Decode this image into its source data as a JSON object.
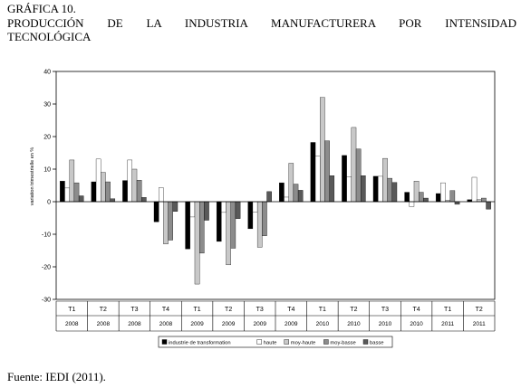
{
  "heading": {
    "line1": "GRÁFICA 10.",
    "line2": "PRODUCCIÓN DE LA INDUSTRIA MANUFACTURERA POR INTENSIDAD",
    "line3": "TECNOLÓGICA"
  },
  "source": "Fuente: IEDI (2011).",
  "colors": {
    "industrie de transformation": "#000000",
    "haute": "#ffffff",
    "moy-haute": "#c8c8c8",
    "moy-basse": "#8c8c8c",
    "basse": "#595959",
    "plot_background": "#ffffff",
    "axis": "#000000"
  },
  "chart_data": {
    "type": "bar",
    "ylabel": "variation trimestrielle en %",
    "ylim": [
      -30,
      40
    ],
    "yticks": [
      -30,
      -20,
      -10,
      0,
      10,
      20,
      30,
      40
    ],
    "grid": false,
    "legend_position": "bottom",
    "categories": [
      {
        "quarter": "T1",
        "year": "2008"
      },
      {
        "quarter": "T2",
        "year": "2008"
      },
      {
        "quarter": "T3",
        "year": "2008"
      },
      {
        "quarter": "T4",
        "year": "2008"
      },
      {
        "quarter": "T1",
        "year": "2009"
      },
      {
        "quarter": "T2",
        "year": "2009"
      },
      {
        "quarter": "T3",
        "year": "2009"
      },
      {
        "quarter": "T4",
        "year": "2009"
      },
      {
        "quarter": "T1",
        "year": "2010"
      },
      {
        "quarter": "T2",
        "year": "2010"
      },
      {
        "quarter": "T3",
        "year": "2010"
      },
      {
        "quarter": "T4",
        "year": "2010"
      },
      {
        "quarter": "T1",
        "year": "2011"
      },
      {
        "quarter": "T2",
        "year": "2011"
      }
    ],
    "series": [
      {
        "name": "industrie de transformation",
        "values": [
          6.3,
          6.1,
          6.5,
          -6.2,
          -14.5,
          -12.2,
          -8.3,
          5.8,
          18.2,
          14.2,
          7.8,
          2.9,
          2.5,
          0.6
        ]
      },
      {
        "name": "haute",
        "values": [
          4.2,
          13.1,
          12.8,
          4.3,
          -4.7,
          -3.3,
          -3.2,
          1.4,
          14.0,
          7.7,
          7.8,
          -1.5,
          5.8,
          7.5
        ]
      },
      {
        "name": "moy-haute",
        "values": [
          12.8,
          9.0,
          10.0,
          -13.0,
          -25.3,
          -19.4,
          -14.0,
          11.8,
          32.0,
          22.8,
          13.3,
          6.3,
          0.4,
          0.6
        ]
      },
      {
        "name": "moy-basse",
        "values": [
          5.8,
          6.1,
          6.6,
          -11.8,
          -15.8,
          -14.3,
          -10.5,
          5.4,
          18.7,
          16.2,
          7.2,
          2.9,
          3.4,
          1.1
        ]
      },
      {
        "name": "basse",
        "values": [
          1.8,
          0.9,
          1.3,
          -3.0,
          -5.7,
          -5.2,
          3.1,
          3.5,
          8.0,
          8.0,
          5.9,
          1.1,
          -0.8,
          -2.3
        ]
      }
    ]
  }
}
